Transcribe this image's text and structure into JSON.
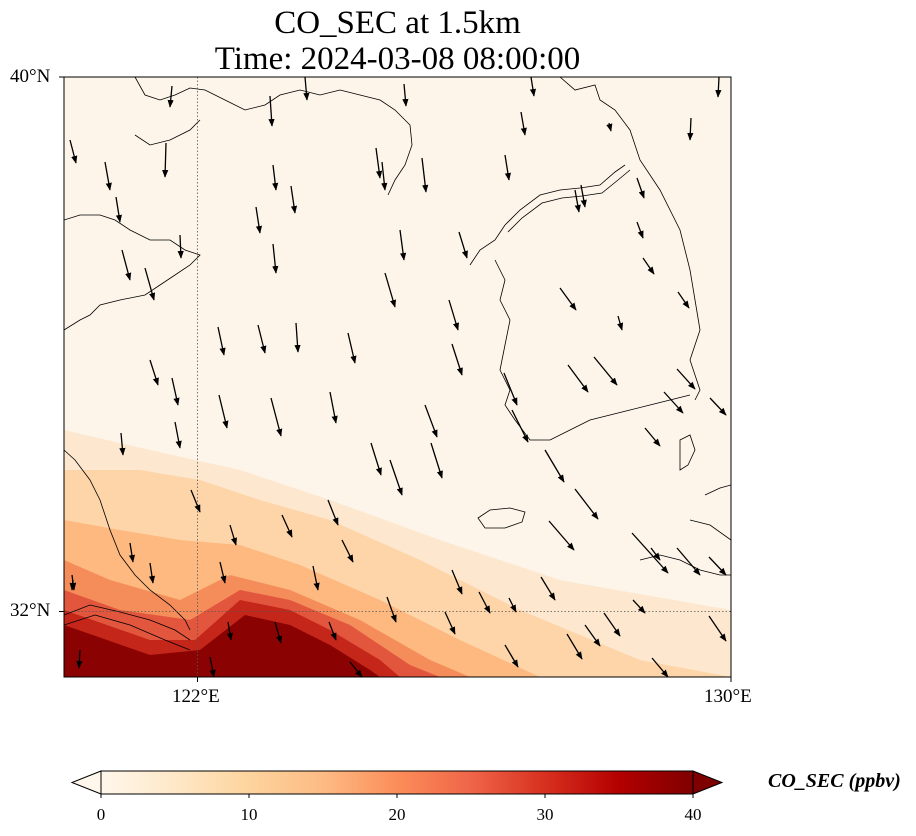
{
  "title": {
    "line1": "CO_SEC at 1.5km",
    "line2": "Time: 2024-03-08 08:00:00"
  },
  "map": {
    "lat_range": [
      31.2,
      40.0
    ],
    "lon_range": [
      120.0,
      130.0
    ],
    "y_ticks": [
      "40°N",
      "32°N"
    ],
    "x_ticks": [
      "122°E",
      "130°E"
    ],
    "gridlines": [
      {
        "lon": 122
      },
      {
        "lat": 32
      }
    ],
    "field_colormap": "OrRd",
    "high_concentration_region": "southwest (Yangtze delta / East China Sea)",
    "wind_vectors": "north-northwesterly arrows across domain"
  },
  "colorbar": {
    "title": "CO_SEC (ppbv)",
    "ticks": [
      "0",
      "10",
      "20",
      "30",
      "40"
    ],
    "min": 0,
    "max": 40,
    "extend": "both",
    "colors": [
      "#fff7ec",
      "#fee8c8",
      "#fdd49e",
      "#fdbb84",
      "#fc8d59",
      "#ef6548",
      "#d7301f",
      "#b30000",
      "#7f0000"
    ]
  }
}
